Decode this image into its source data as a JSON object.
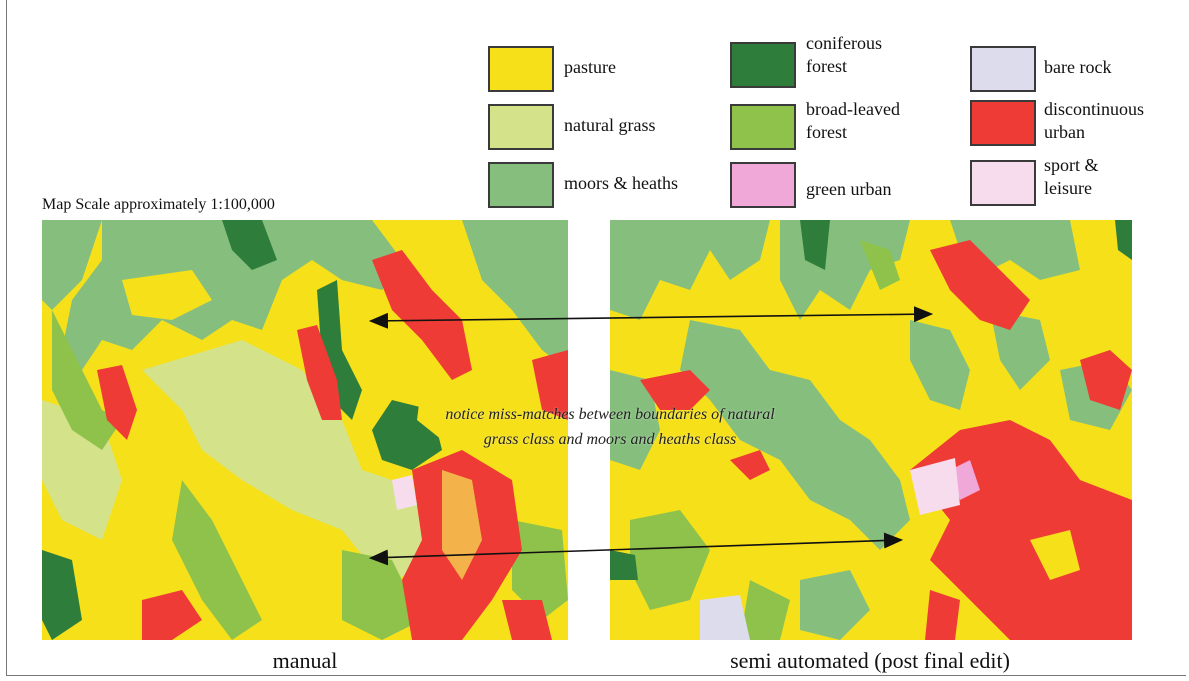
{
  "legend": {
    "items": [
      {
        "key": "pasture",
        "label": "pasture",
        "color": "#f6e01a"
      },
      {
        "key": "coniferous-forest",
        "label": "coniferous forest",
        "color": "#2f7d3a"
      },
      {
        "key": "bare-rock",
        "label": "bare rock",
        "color": "#dcdcec"
      },
      {
        "key": "natural-grass",
        "label": "natural grass",
        "color": "#d4e38a"
      },
      {
        "key": "broad-leaved-forest",
        "label": "broad-leaved forest",
        "color": "#8fc24a"
      },
      {
        "key": "discontinuous-urban",
        "label": "discontinuous urban",
        "color": "#ee3b36"
      },
      {
        "key": "moors-heaths",
        "label": "moors & heaths",
        "color": "#86bf7d"
      },
      {
        "key": "green-urban",
        "label": "green urban",
        "color": "#f0a8d8"
      },
      {
        "key": "sport-leisure",
        "label": "sport & leisure",
        "color": "#f6dced"
      }
    ]
  },
  "scale_text": "Map Scale approximately 1:100,000",
  "note": "notice miss-matches between boundaries of natural grass class and moors and heaths class",
  "maps": {
    "left_caption": "manual",
    "right_caption": "semi automated (post final edit)"
  }
}
